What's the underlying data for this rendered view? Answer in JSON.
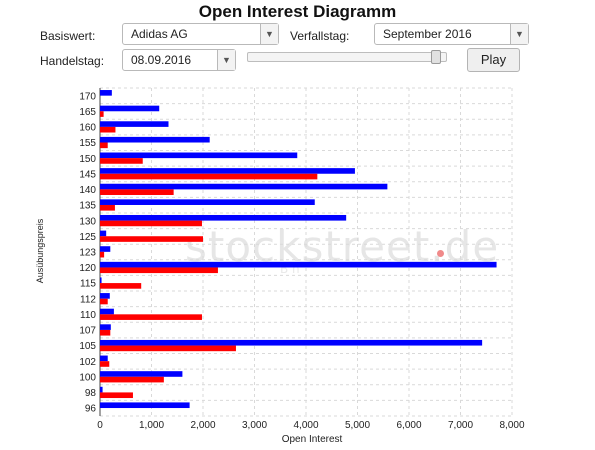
{
  "title": "Open Interest Diagramm",
  "controls": {
    "basiswert_label": "Basiswert:",
    "basiswert_value": "Adidas AG",
    "verfallstag_label": "Verfallstag:",
    "verfallstag_value": "September 2016",
    "handelstag_label": "Handelstag:",
    "handelstag_value": "08.09.2016",
    "slider_position": 0.97,
    "play_label": "Play"
  },
  "watermark": {
    "text": "stockstreet.de",
    "subtext": "B                  n"
  },
  "colors": {
    "calls": "#0000ff",
    "puts": "#ff0000",
    "grid": "#d9d9d9"
  },
  "chart_data": {
    "type": "bar",
    "orientation": "horizontal",
    "title": "",
    "xlabel": "Open Interest",
    "ylabel": "Ausübungspreis",
    "xlim": [
      0,
      8000
    ],
    "xticks": [
      "0",
      "1,000",
      "2,000",
      "3,000",
      "4,000",
      "5,000",
      "6,000",
      "7,000",
      "8,000"
    ],
    "grid": true,
    "categories": [
      "170",
      "165",
      "160",
      "155",
      "150",
      "145",
      "140",
      "135",
      "130",
      "125",
      "123",
      "120",
      "115",
      "112",
      "110",
      "107",
      "105",
      "102",
      "100",
      "98",
      "96"
    ],
    "series": [
      {
        "color": "#0000ff",
        "values": [
          230,
          1150,
          1330,
          2130,
          3830,
          4950,
          5580,
          4170,
          4780,
          120,
          200,
          7700,
          30,
          190,
          270,
          210,
          7420,
          150,
          1600,
          50,
          1740
        ]
      },
      {
        "color": "#ff0000",
        "values": [
          0,
          70,
          300,
          150,
          830,
          4220,
          1430,
          290,
          1980,
          2000,
          80,
          2290,
          800,
          150,
          1980,
          200,
          2640,
          180,
          1240,
          640,
          0
        ]
      }
    ]
  }
}
